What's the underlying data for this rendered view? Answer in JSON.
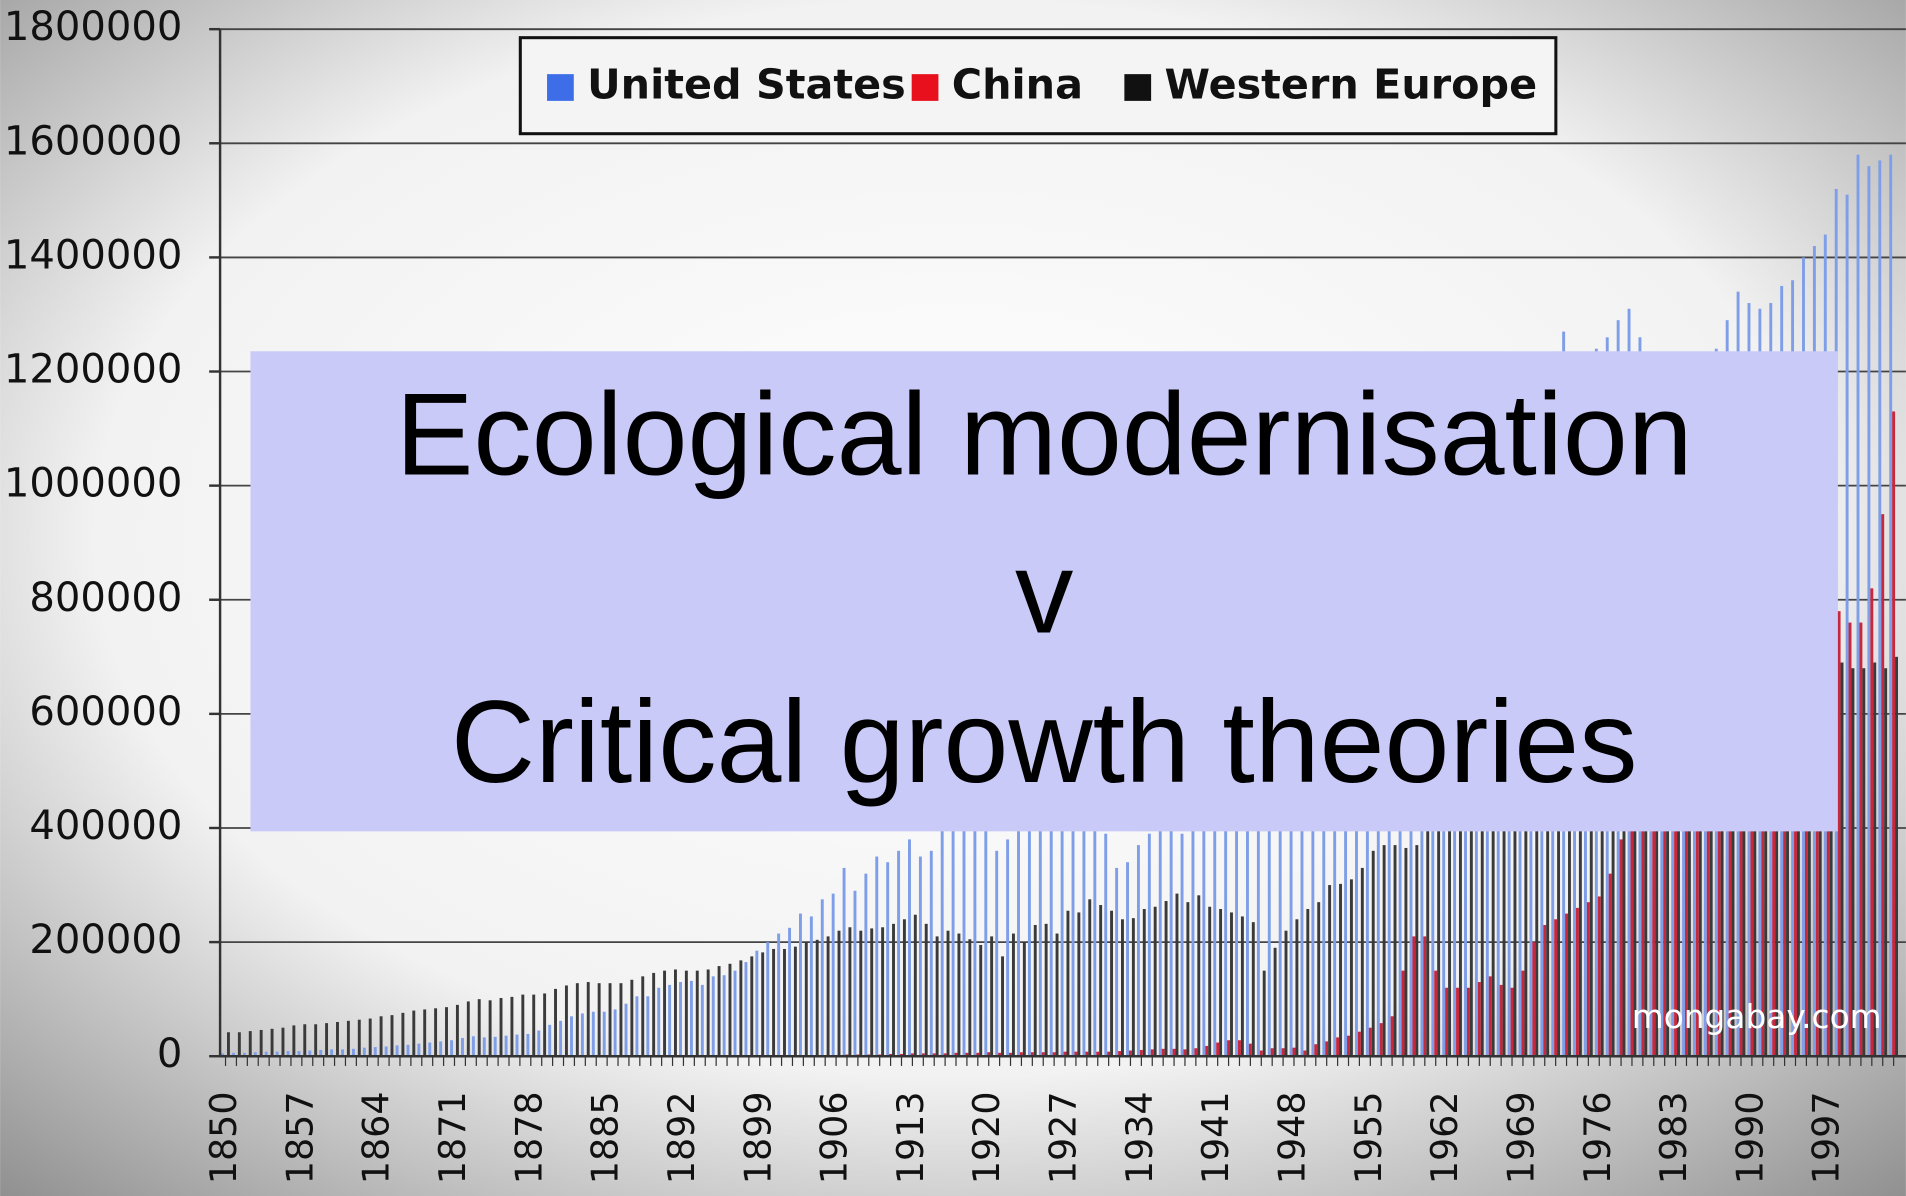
{
  "chart_data": {
    "type": "bar",
    "overlay": [
      "Ecological modernisation",
      "v",
      "Critical growth theories"
    ],
    "annotation": "mongabay.com",
    "legend": "top",
    "grid": true,
    "ylim": [
      0,
      1800000
    ],
    "yticks": [
      0,
      200000,
      400000,
      600000,
      800000,
      1000000,
      1200000,
      1400000,
      1600000,
      1800000
    ],
    "categories": [
      "1850",
      null,
      null,
      null,
      null,
      null,
      null,
      "1857",
      null,
      null,
      null,
      null,
      null,
      null,
      "1864",
      null,
      null,
      null,
      null,
      null,
      null,
      "1871",
      null,
      null,
      null,
      null,
      null,
      null,
      "1878",
      null,
      null,
      null,
      null,
      null,
      null,
      "1885",
      null,
      null,
      null,
      null,
      null,
      null,
      "1892",
      null,
      null,
      null,
      null,
      null,
      null,
      "1899",
      null,
      null,
      null,
      null,
      null,
      null,
      "1906",
      null,
      null,
      null,
      null,
      null,
      null,
      "1913",
      null,
      null,
      null,
      null,
      null,
      null,
      "1920",
      null,
      null,
      null,
      null,
      null,
      null,
      "1927",
      null,
      null,
      null,
      null,
      null,
      null,
      "1934",
      null,
      null,
      null,
      null,
      null,
      null,
      "1941",
      null,
      null,
      null,
      null,
      null,
      null,
      "1948",
      null,
      null,
      null,
      null,
      null,
      null,
      "1955",
      null,
      null,
      null,
      null,
      null,
      null,
      "1962",
      null,
      null,
      null,
      null,
      null,
      null,
      "1969",
      null,
      null,
      null,
      null,
      null,
      null,
      "1976",
      null,
      null,
      null,
      null,
      null,
      null,
      "1983",
      null,
      null,
      null,
      null,
      null,
      null,
      "1990",
      null,
      null,
      null,
      null,
      null,
      null,
      "1997",
      null,
      null,
      null,
      null,
      null,
      null
    ],
    "series": [
      {
        "name": "United States",
        "color": "#7f9ee8",
        "legend_color": "#3d6ee8",
        "values": [
          5000,
          6000,
          6000,
          7000,
          8000,
          8000,
          9000,
          9000,
          10000,
          11000,
          12000,
          12000,
          13000,
          15000,
          16000,
          17000,
          19000,
          20000,
          22000,
          24000,
          26000,
          28000,
          32000,
          35000,
          33000,
          34000,
          36000,
          38000,
          39000,
          45000,
          55000,
          62000,
          70000,
          75000,
          78000,
          78000,
          82000,
          92000,
          105000,
          105000,
          120000,
          125000,
          130000,
          132000,
          125000,
          140000,
          142000,
          150000,
          165000,
          185000,
          200000,
          215000,
          225000,
          250000,
          245000,
          275000,
          285000,
          330000,
          290000,
          320000,
          350000,
          340000,
          360000,
          380000,
          350000,
          360000,
          400000,
          430000,
          450000,
          400000,
          440000,
          360000,
          380000,
          460000,
          440000,
          450000,
          470000,
          460000,
          470000,
          500000,
          450000,
          390000,
          330000,
          340000,
          370000,
          390000,
          430000,
          450000,
          390000,
          420000,
          460000,
          490000,
          520000,
          570000,
          590000,
          570000,
          560000,
          600000,
          620000,
          570000,
          640000,
          670000,
          660000,
          680000,
          650000,
          710000,
          740000,
          730000,
          720000,
          750000,
          780000,
          780000,
          810000,
          850000,
          890000,
          920000,
          970000,
          1010000,
          1050000,
          1100000,
          1150000,
          1160000,
          1210000,
          1270000,
          1230000,
          1180000,
          1240000,
          1260000,
          1290000,
          1310000,
          1260000,
          1220000,
          1160000,
          1150000,
          1190000,
          1200000,
          1200000,
          1240000,
          1290000,
          1340000,
          1320000,
          1310000,
          1320000,
          1350000,
          1360000,
          1400000,
          1420000,
          1440000,
          1520000,
          1510000,
          1580000,
          1560000,
          1570000,
          1580000
        ]
      },
      {
        "name": "China",
        "color": "#c8283c",
        "legend_color": "#e8101c",
        "values": [
          0,
          0,
          0,
          0,
          0,
          0,
          0,
          0,
          0,
          0,
          0,
          0,
          0,
          0,
          0,
          0,
          0,
          0,
          0,
          0,
          0,
          0,
          0,
          0,
          0,
          0,
          0,
          0,
          0,
          0,
          0,
          0,
          0,
          0,
          0,
          0,
          0,
          0,
          0,
          0,
          0,
          0,
          0,
          0,
          0,
          0,
          0,
          0,
          0,
          0,
          1000,
          1000,
          1000,
          1000,
          2000,
          2000,
          2000,
          3000,
          3000,
          3000,
          3000,
          4000,
          4000,
          5000,
          5000,
          5000,
          5000,
          6000,
          6000,
          6000,
          7000,
          6000,
          6000,
          7000,
          7000,
          7000,
          7000,
          8000,
          8000,
          8000,
          8000,
          8000,
          9000,
          10000,
          11000,
          12000,
          13000,
          13000,
          12000,
          14000,
          18000,
          24000,
          28000,
          28000,
          22000,
          10000,
          14000,
          14000,
          15000,
          10000,
          21000,
          26000,
          33000,
          36000,
          43000,
          50000,
          58000,
          70000,
          150000,
          210000,
          210000,
          150000,
          120000,
          120000,
          120000,
          130000,
          140000,
          125000,
          120000,
          150000,
          200000,
          230000,
          240000,
          250000,
          260000,
          270000,
          280000,
          320000,
          380000,
          400000,
          400000,
          400000,
          420000,
          440000,
          480000,
          520000,
          550000,
          580000,
          620000,
          640000,
          650000,
          680000,
          720000,
          750000,
          780000,
          800000,
          830000,
          850000,
          780000,
          760000,
          760000,
          820000,
          950000,
          1130000
        ]
      },
      {
        "name": "Western Europe",
        "color": "#3a3a3a",
        "legend_color": "#111111",
        "values": [
          42000,
          42000,
          44000,
          46000,
          48000,
          50000,
          54000,
          56000,
          56000,
          58000,
          60000,
          62000,
          64000,
          66000,
          70000,
          72000,
          76000,
          80000,
          82000,
          84000,
          86000,
          90000,
          96000,
          100000,
          98000,
          102000,
          104000,
          108000,
          108000,
          110000,
          118000,
          124000,
          128000,
          130000,
          128000,
          128000,
          128000,
          134000,
          140000,
          146000,
          150000,
          152000,
          150000,
          150000,
          152000,
          158000,
          162000,
          168000,
          175000,
          182000,
          188000,
          188000,
          192000,
          200000,
          204000,
          210000,
          220000,
          226000,
          220000,
          224000,
          226000,
          232000,
          240000,
          248000,
          232000,
          210000,
          220000,
          215000,
          205000,
          195000,
          210000,
          175000,
          215000,
          200000,
          230000,
          232000,
          215000,
          255000,
          252000,
          275000,
          265000,
          255000,
          240000,
          242000,
          258000,
          262000,
          272000,
          285000,
          270000,
          282000,
          262000,
          258000,
          252000,
          245000,
          235000,
          150000,
          190000,
          220000,
          240000,
          258000,
          270000,
          300000,
          302000,
          310000,
          330000,
          360000,
          370000,
          370000,
          365000,
          370000,
          400000,
          420000,
          440000,
          460000,
          480000,
          490000,
          500000,
          520000,
          560000,
          600000,
          640000,
          650000,
          670000,
          700000,
          680000,
          650000,
          700000,
          690000,
          710000,
          740000,
          720000,
          690000,
          670000,
          660000,
          670000,
          680000,
          690000,
          690000,
          690000,
          690000,
          700000,
          690000,
          680000,
          670000,
          670000,
          680000,
          700000,
          690000,
          690000,
          680000,
          680000,
          690000,
          680000,
          700000
        ]
      }
    ]
  }
}
